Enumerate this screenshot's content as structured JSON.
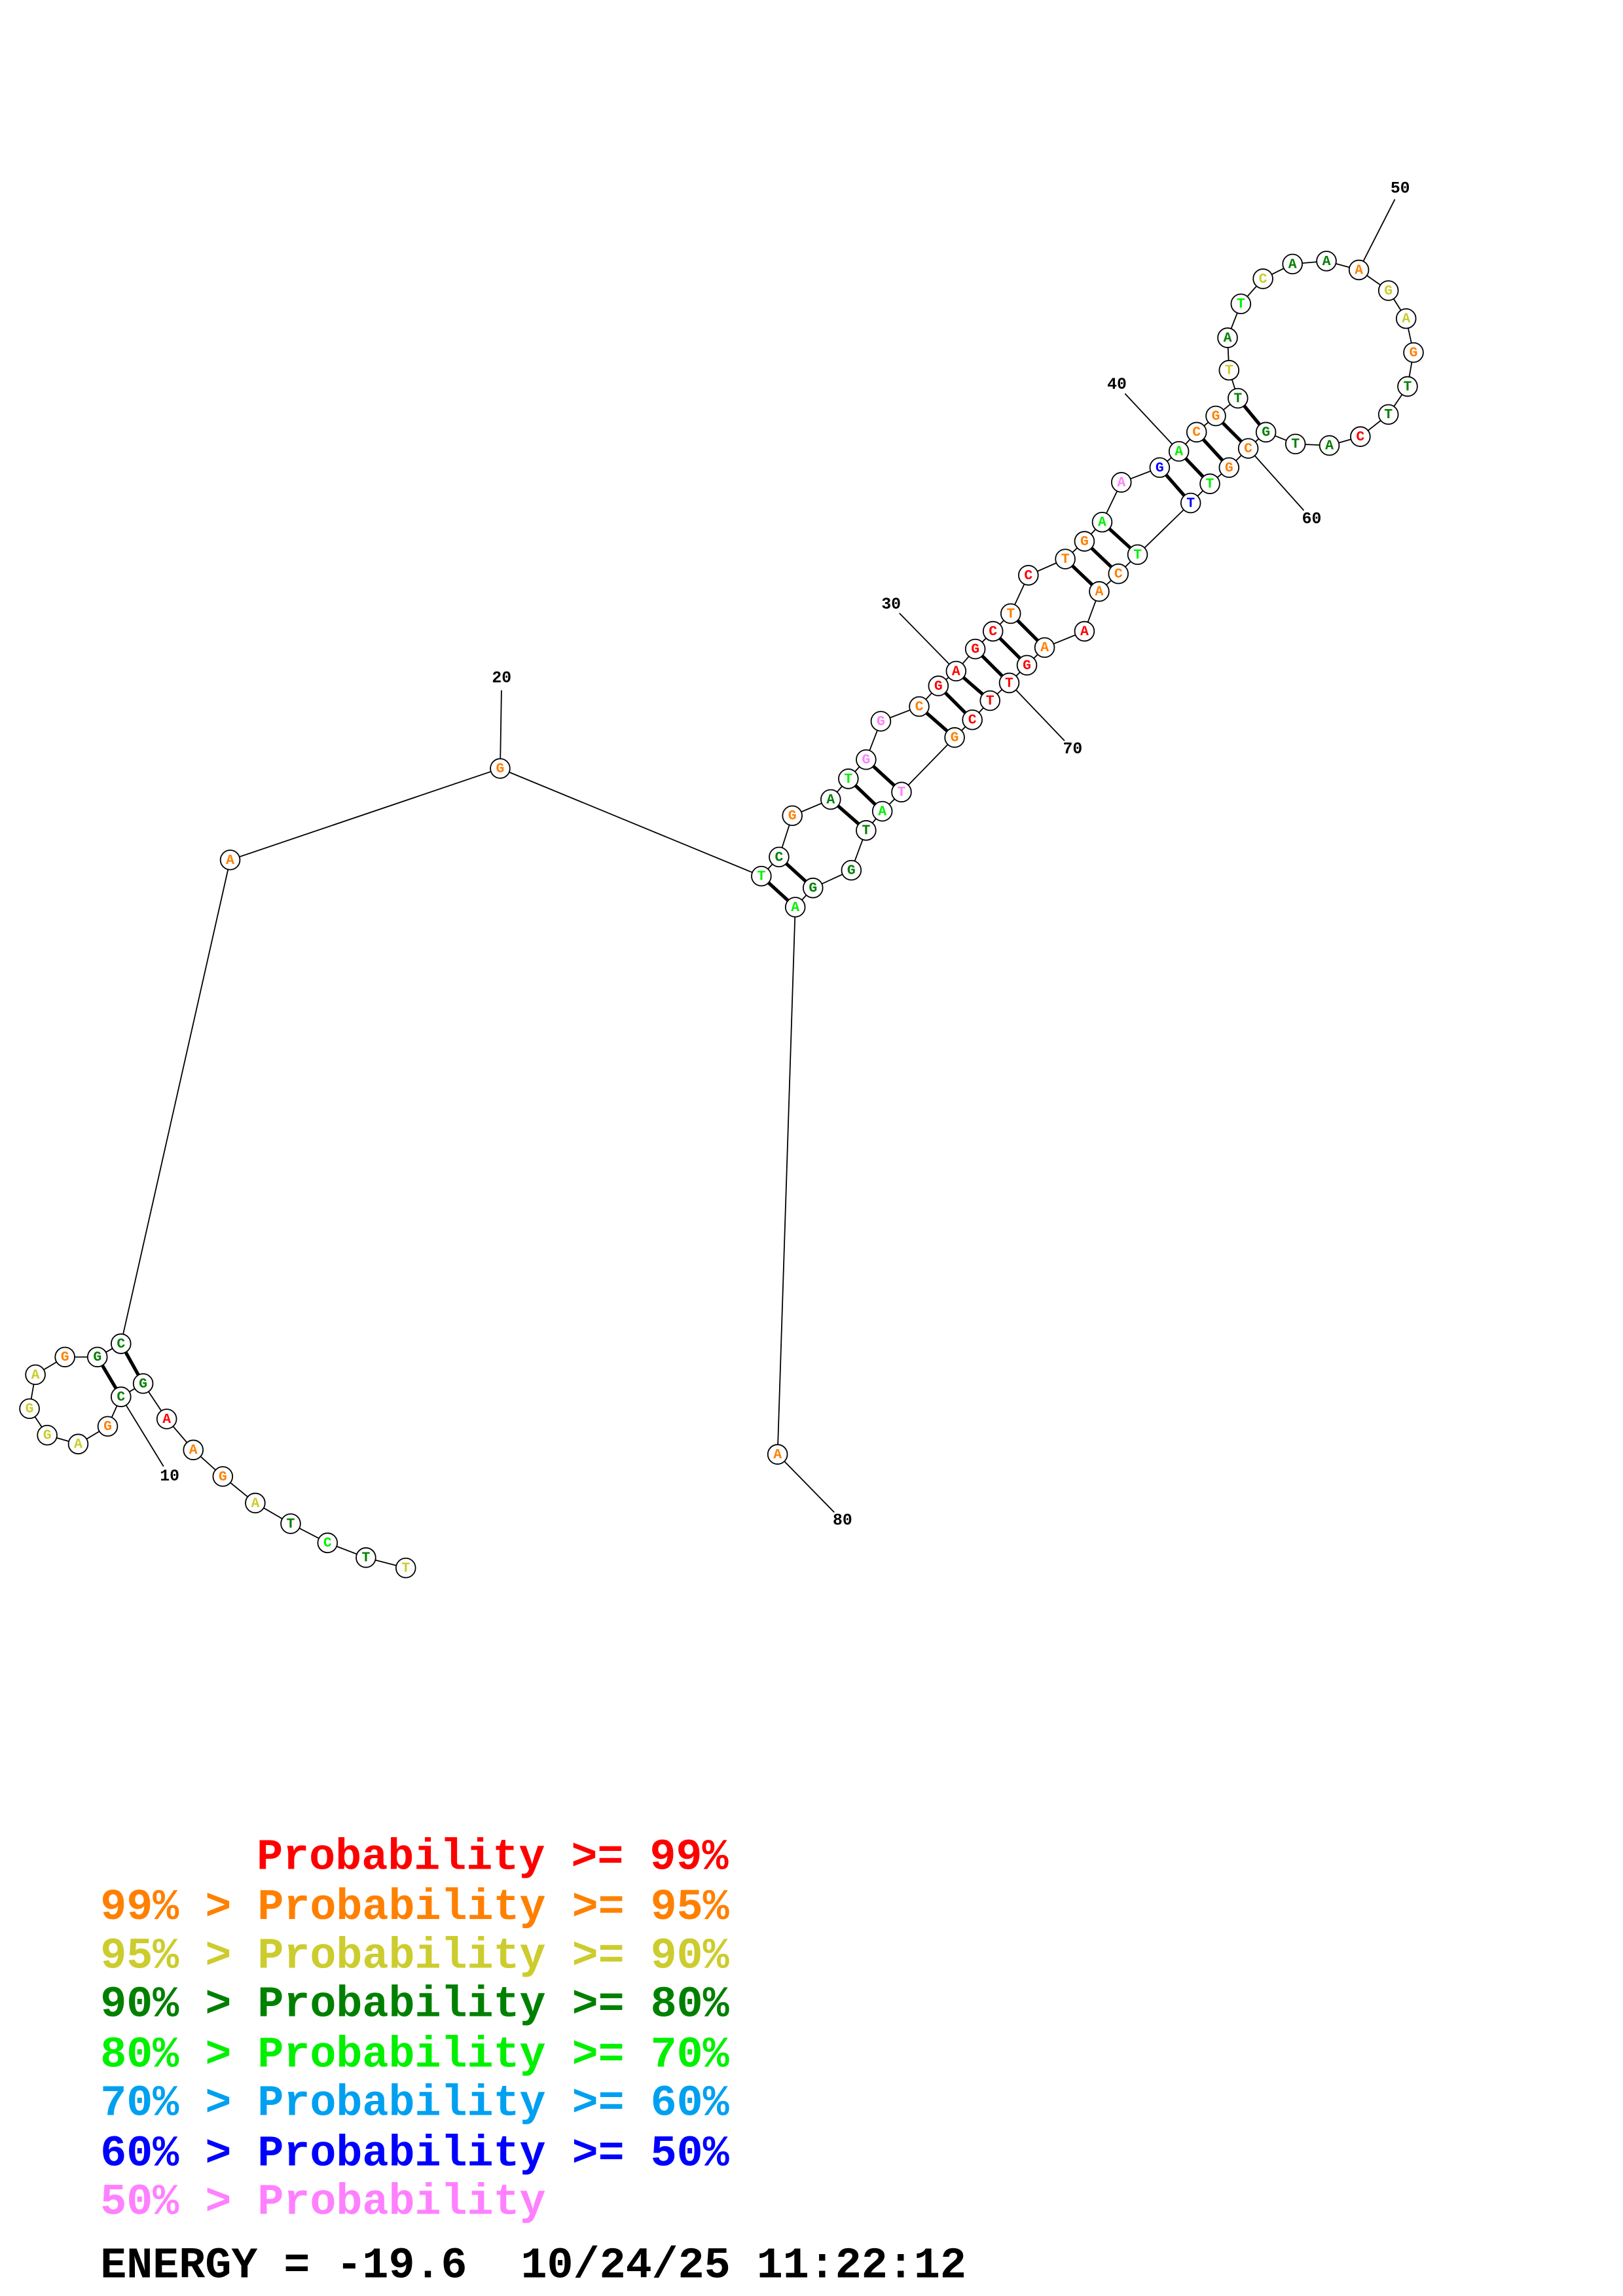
{
  "legend": [
    {
      "text": "Probability >= 99%",
      "color": "#ff0000"
    },
    {
      "text": "99% > Probability >= 95%",
      "color": "#ff8000"
    },
    {
      "text": "95% > Probability >= 90%",
      "color": "#cccc2e"
    },
    {
      "text": "90% > Probability >= 80%",
      "color": "#008000"
    },
    {
      "text": "80% > Probability >= 70%",
      "color": "#00f000"
    },
    {
      "text": "70% > Probability >= 60%",
      "color": "#00a0f0"
    },
    {
      "text": "60% > Probability >= 50%",
      "color": "#0000ff"
    },
    {
      "text": "50% > Probability",
      "color": "#ff80ff"
    }
  ],
  "energy": {
    "text": "ENERGY = -19.6",
    "timestamp": "10/24/25 11:22:12"
  },
  "number_labels": [
    {
      "nucleotide": 10,
      "text": "10"
    },
    {
      "nucleotide": 20,
      "text": "20"
    },
    {
      "nucleotide": 30,
      "text": "30"
    },
    {
      "nucleotide": 40,
      "text": "40"
    },
    {
      "nucleotide": 50,
      "text": "50"
    },
    {
      "nucleotide": 60,
      "text": "60"
    },
    {
      "nucleotide": 70,
      "text": "70"
    },
    {
      "nucleotide": 80,
      "text": "80"
    }
  ],
  "pairs": [
    [
      9,
      18
    ],
    [
      10,
      17
    ],
    [
      21,
      79
    ],
    [
      22,
      78
    ],
    [
      24,
      76
    ],
    [
      25,
      75
    ],
    [
      26,
      74
    ],
    [
      28,
      73
    ],
    [
      29,
      72
    ],
    [
      30,
      71
    ],
    [
      31,
      70
    ],
    [
      32,
      69
    ],
    [
      33,
      68
    ],
    [
      35,
      66
    ],
    [
      36,
      65
    ],
    [
      37,
      64
    ],
    [
      39,
      63
    ],
    [
      40,
      62
    ],
    [
      41,
      61
    ],
    [
      42,
      60
    ],
    [
      43,
      59
    ]
  ],
  "sequence": [
    {
      "base": "T",
      "prob_class": 2
    },
    {
      "base": "T",
      "prob_class": 3
    },
    {
      "base": "C",
      "prob_class": 4
    },
    {
      "base": "T",
      "prob_class": 3
    },
    {
      "base": "A",
      "prob_class": 2
    },
    {
      "base": "G",
      "prob_class": 1
    },
    {
      "base": "A",
      "prob_class": 1
    },
    {
      "base": "A",
      "prob_class": 0
    },
    {
      "base": "G",
      "prob_class": 3
    },
    {
      "base": "C",
      "prob_class": 3
    },
    {
      "base": "G",
      "prob_class": 1
    },
    {
      "base": "A",
      "prob_class": 2
    },
    {
      "base": "G",
      "prob_class": 2
    },
    {
      "base": "G",
      "prob_class": 2
    },
    {
      "base": "A",
      "prob_class": 2
    },
    {
      "base": "G",
      "prob_class": 1
    },
    {
      "base": "G",
      "prob_class": 3
    },
    {
      "base": "C",
      "prob_class": 3
    },
    {
      "base": "A",
      "prob_class": 1
    },
    {
      "base": "G",
      "prob_class": 1
    },
    {
      "base": "T",
      "prob_class": 4
    },
    {
      "base": "C",
      "prob_class": 3
    },
    {
      "base": "G",
      "prob_class": 1
    },
    {
      "base": "A",
      "prob_class": 3
    },
    {
      "base": "T",
      "prob_class": 4
    },
    {
      "base": "G",
      "prob_class": 7
    },
    {
      "base": "G",
      "prob_class": 7
    },
    {
      "base": "C",
      "prob_class": 1
    },
    {
      "base": "G",
      "prob_class": 0
    },
    {
      "base": "A",
      "prob_class": 0
    },
    {
      "base": "G",
      "prob_class": 0
    },
    {
      "base": "C",
      "prob_class": 0
    },
    {
      "base": "T",
      "prob_class": 1
    },
    {
      "base": "C",
      "prob_class": 0
    },
    {
      "base": "T",
      "prob_class": 1
    },
    {
      "base": "G",
      "prob_class": 1
    },
    {
      "base": "A",
      "prob_class": 4
    },
    {
      "base": "A",
      "prob_class": 7
    },
    {
      "base": "G",
      "prob_class": 6
    },
    {
      "base": "A",
      "prob_class": 4
    },
    {
      "base": "C",
      "prob_class": 1
    },
    {
      "base": "G",
      "prob_class": 1
    },
    {
      "base": "T",
      "prob_class": 3
    },
    {
      "base": "T",
      "prob_class": 2
    },
    {
      "base": "A",
      "prob_class": 3
    },
    {
      "base": "T",
      "prob_class": 4
    },
    {
      "base": "C",
      "prob_class": 2
    },
    {
      "base": "A",
      "prob_class": 3
    },
    {
      "base": "A",
      "prob_class": 3
    },
    {
      "base": "A",
      "prob_class": 1
    },
    {
      "base": "G",
      "prob_class": 2
    },
    {
      "base": "A",
      "prob_class": 2
    },
    {
      "base": "G",
      "prob_class": 1
    },
    {
      "base": "T",
      "prob_class": 3
    },
    {
      "base": "T",
      "prob_class": 3
    },
    {
      "base": "C",
      "prob_class": 0
    },
    {
      "base": "A",
      "prob_class": 3
    },
    {
      "base": "T",
      "prob_class": 3
    },
    {
      "base": "G",
      "prob_class": 3
    },
    {
      "base": "C",
      "prob_class": 1
    },
    {
      "base": "G",
      "prob_class": 1
    },
    {
      "base": "T",
      "prob_class": 4
    },
    {
      "base": "T",
      "prob_class": 6
    },
    {
      "base": "T",
      "prob_class": 4
    },
    {
      "base": "C",
      "prob_class": 1
    },
    {
      "base": "A",
      "prob_class": 1
    },
    {
      "base": "A",
      "prob_class": 0
    },
    {
      "base": "A",
      "prob_class": 1
    },
    {
      "base": "G",
      "prob_class": 0
    },
    {
      "base": "T",
      "prob_class": 0
    },
    {
      "base": "T",
      "prob_class": 0
    },
    {
      "base": "C",
      "prob_class": 0
    },
    {
      "base": "G",
      "prob_class": 1
    },
    {
      "base": "T",
      "prob_class": 7
    },
    {
      "base": "A",
      "prob_class": 4
    },
    {
      "base": "T",
      "prob_class": 3
    },
    {
      "base": "G",
      "prob_class": 3
    },
    {
      "base": "G",
      "prob_class": 3
    },
    {
      "base": "A",
      "prob_class": 4
    },
    {
      "base": "A",
      "prob_class": 1
    }
  ]
}
